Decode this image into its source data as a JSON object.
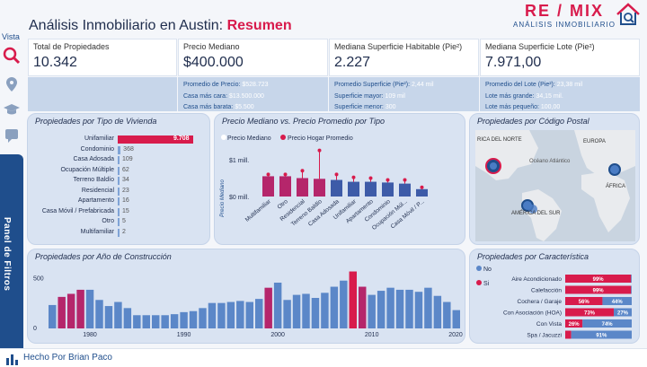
{
  "sidebar": {
    "vista": "Vista",
    "filter_panel": "Panel de Filtros"
  },
  "header": {
    "title_prefix": "Análisis Inmobiliario en Austin: ",
    "title_highlight": "Resumen",
    "brand_logo": "RE / MIX",
    "brand_sub": "ANÁLISIS INMOBILIARIO"
  },
  "kpis": [
    {
      "label": "Total de Propiedades",
      "value": "10.342"
    },
    {
      "label": "Precio Mediano",
      "value": "$400.000"
    },
    {
      "label": "Mediana Superficie Habitable (Pie²)",
      "value": "2.227"
    },
    {
      "label": "Mediana Superficie Lote (Pie²)",
      "value": "7.971,00"
    }
  ],
  "details": {
    "price": [
      {
        "k": "Promedio de Precio: ",
        "v": "$528.723"
      },
      {
        "k": "Casa más cara: ",
        "v": "$13.500.000"
      },
      {
        "k": "Casa más barata: ",
        "v": "$5.500"
      }
    ],
    "living": [
      {
        "k": "Promedio Superficie (Pie²): ",
        "v": "2,44 mil"
      },
      {
        "k": "Superficie mayor: ",
        "v": "109 mil"
      },
      {
        "k": "Superficie menor: ",
        "v": "300"
      }
    ],
    "lot": [
      {
        "k": "Promedio del Lote (Pie²): ",
        "v": "23,38 mil"
      },
      {
        "k": "Lote más grande: ",
        "v": "34,15 mil."
      },
      {
        "k": "Lote más pequeño: ",
        "v": "100,00"
      }
    ]
  },
  "panels": {
    "tipo": "Propiedades por Tipo de Vivienda",
    "precio": "Precio Mediano vs. Precio Promedio por Tipo",
    "mapa": "Propiedades por Código Postal",
    "anio": "Propiedades por Año de Construcción",
    "carac": "Propiedades por Característica"
  },
  "tipo_rows": [
    {
      "label": "Unifamiliar",
      "value": 9708,
      "text": "9.708"
    },
    {
      "label": "Condominio",
      "value": 368,
      "text": "368"
    },
    {
      "label": "Casa Adosada",
      "value": 109,
      "text": "109"
    },
    {
      "label": "Ocupación Múltiple",
      "value": 62,
      "text": "62"
    },
    {
      "label": "Terreno Baldío",
      "value": 34,
      "text": "34"
    },
    {
      "label": "Residencial",
      "value": 23,
      "text": "23"
    },
    {
      "label": "Apartamento",
      "value": 16,
      "text": "16"
    },
    {
      "label": "Casa Móvil / Prefabricada",
      "value": 15,
      "text": "15"
    },
    {
      "label": "Otro",
      "value": 5,
      "text": "5"
    },
    {
      "label": "Multifamiliar",
      "value": 2,
      "text": "2"
    }
  ],
  "chart_data": [
    {
      "type": "bar",
      "title": "Precio Mediano vs. Precio Promedio por Tipo",
      "ylabel": "Precio Mediano",
      "legend": [
        "Precio Mediano",
        "Precio Hogar Promedio"
      ],
      "yticks": [
        "$0 mill.",
        "$1 mill."
      ],
      "categories": [
        "Multifamiliar",
        "Otro",
        "Residencial",
        "Terreno Baldío",
        "Casa Adosada",
        "Unifamiliar",
        "Apartamento",
        "Condominio",
        "Ocupación Múl...",
        "Casa Móvil / P..."
      ],
      "values": [
        0.55,
        0.55,
        0.5,
        0.48,
        0.45,
        0.4,
        0.4,
        0.38,
        0.35,
        0.2
      ],
      "avg": [
        0.6,
        0.6,
        0.7,
        1.25,
        0.6,
        0.52,
        0.5,
        0.45,
        0.45,
        0.25
      ],
      "ylim": [
        0,
        1.5
      ]
    },
    {
      "type": "bar",
      "title": "Propiedades por Año de Construcción",
      "ylim": [
        0,
        600
      ],
      "yticks": [
        "0",
        "500"
      ],
      "xticks": [
        "1980",
        "1990",
        "2000",
        "2010",
        "2020"
      ],
      "x": [
        1976,
        1977,
        1978,
        1979,
        1980,
        1981,
        1982,
        1983,
        1984,
        1985,
        1986,
        1987,
        1988,
        1989,
        1990,
        1991,
        1992,
        1993,
        1994,
        1995,
        1996,
        1997,
        1998,
        1999,
        2000,
        2001,
        2002,
        2003,
        2004,
        2005,
        2006,
        2007,
        2008,
        2009,
        2010,
        2011,
        2012,
        2013,
        2014,
        2015,
        2016,
        2017,
        2018,
        2019
      ],
      "values": [
        230,
        310,
        340,
        380,
        380,
        280,
        220,
        260,
        200,
        130,
        130,
        130,
        130,
        140,
        160,
        170,
        200,
        250,
        250,
        260,
        270,
        260,
        290,
        400,
        450,
        280,
        330,
        340,
        300,
        350,
        410,
        470,
        560,
        410,
        330,
        370,
        400,
        380,
        380,
        360,
        400,
        320,
        260,
        180
      ]
    },
    {
      "type": "bar",
      "title": "Propiedades por Característica",
      "legend": [
        "No",
        "Si"
      ],
      "categories": [
        "Aire Acondicionado",
        "Calefacción",
        "Cochera / Garaje",
        "Con Asociación (HOA)",
        "Con Vista",
        "Spa / Jacuzzi"
      ],
      "si": [
        99,
        99,
        56,
        73,
        26,
        9
      ],
      "no": [
        1,
        1,
        44,
        27,
        74,
        91
      ],
      "labels_si": [
        "99%",
        "99%",
        "56%",
        "73%",
        "26%",
        ""
      ],
      "labels_no": [
        "",
        "",
        "44%",
        "27%",
        "74%",
        "91%"
      ]
    }
  ],
  "map": {
    "labels": [
      "RICA DEL NORTE",
      "Océano Atlántico",
      "EUROPA",
      "ÁFRICA",
      "AMÉRICA DEL SUR"
    ]
  },
  "footer": {
    "credit": "Hecho Por Brian Paco"
  },
  "colors": {
    "accent": "#d81b4c",
    "blue": "#4a7cc4",
    "navy": "#1f4e8c"
  }
}
